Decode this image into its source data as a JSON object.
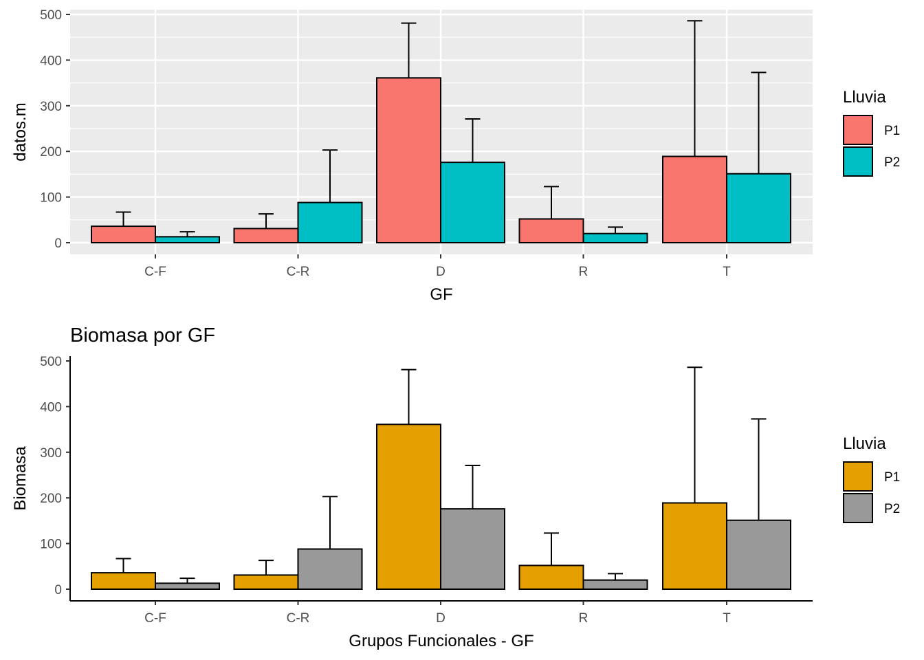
{
  "chart_data": [
    {
      "type": "bar",
      "title": "",
      "xlabel": "GF",
      "ylabel": "datos.m",
      "categories": [
        "C-F",
        "C-R",
        "D",
        "R",
        "T"
      ],
      "ylim": [
        0,
        500
      ],
      "yticks": [
        "0",
        "100",
        "200",
        "300",
        "400",
        "500"
      ],
      "grid": true,
      "theme": "grey-panel",
      "legend": {
        "title": "Lluvia",
        "placement": "right"
      },
      "series": [
        {
          "name": "P1",
          "color": "#F8766D",
          "values": [
            36,
            31,
            361,
            52,
            189
          ],
          "error_upper": [
            67,
            63,
            481,
            123,
            486
          ]
        },
        {
          "name": "P2",
          "color": "#00BFC4",
          "values": [
            13,
            88,
            176,
            20,
            151
          ],
          "error_upper": [
            24,
            203,
            271,
            34,
            373
          ]
        }
      ]
    },
    {
      "type": "bar",
      "title": "Biomasa por GF",
      "xlabel": "Grupos Funcionales - GF",
      "ylabel": "Biomasa",
      "categories": [
        "C-F",
        "C-R",
        "D",
        "R",
        "T"
      ],
      "ylim": [
        0,
        500
      ],
      "yticks": [
        "0",
        "100",
        "200",
        "300",
        "400",
        "500"
      ],
      "grid": false,
      "theme": "classic",
      "legend": {
        "title": "Lluvia",
        "placement": "right"
      },
      "series": [
        {
          "name": "P1",
          "color": "#E69F00",
          "values": [
            36,
            31,
            361,
            52,
            189
          ],
          "error_upper": [
            67,
            63,
            481,
            123,
            486
          ]
        },
        {
          "name": "P2",
          "color": "#999999",
          "values": [
            13,
            88,
            176,
            20,
            151
          ],
          "error_upper": [
            24,
            203,
            271,
            34,
            373
          ]
        }
      ]
    }
  ]
}
